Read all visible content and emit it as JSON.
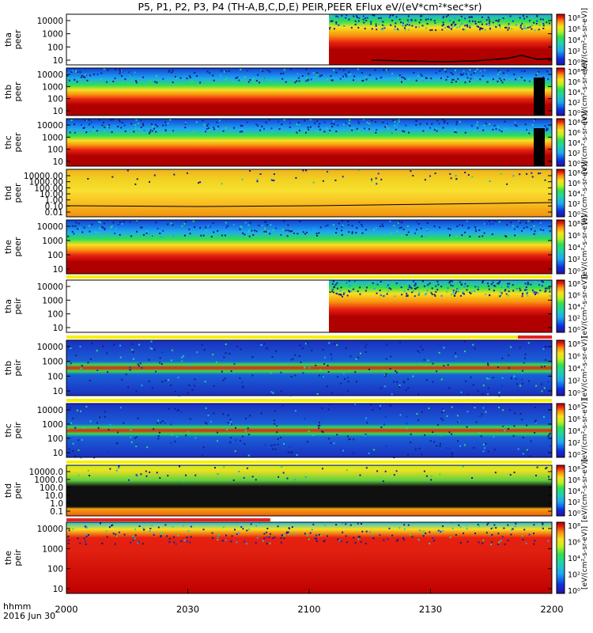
{
  "title": "P5, P1, P2, P3, P4 (TH-A,B,C,D,E) PEIR,PEER EFlux eV/(eV*cm²*sec*sr)",
  "colorbar_label": "[eV/(cm²-s-sr-eV)]",
  "colorbar_ticks": [
    "10⁰",
    "10²",
    "10⁴",
    "10⁶",
    "10⁸"
  ],
  "colors": {
    "cmap": [
      "#2a10a0",
      "#0a30e0",
      "#1fa8f0",
      "#20d0b0",
      "#30e050",
      "#c0f020",
      "#f8e020",
      "#f89010",
      "#e82010",
      "#b00000"
    ]
  },
  "footer": {
    "hhmm": "hhmm",
    "date": "2016 Jun 30"
  },
  "x_ticks": [
    "2000",
    "2030",
    "2100",
    "2130",
    "2200"
  ],
  "chart_data": {
    "type": "heatmap",
    "x_range": [
      "20:00",
      "22:00"
    ],
    "panels": [
      {
        "probe": "tha",
        "inst": "peer",
        "yticks": [
          "10000",
          "1000",
          "100",
          "10"
        ]
      },
      {
        "probe": "thb",
        "inst": "peer",
        "yticks": [
          "10000",
          "1000",
          "100",
          "10"
        ]
      },
      {
        "probe": "thc",
        "inst": "peer",
        "yticks": [
          "10000",
          "1000",
          "100",
          "10"
        ]
      },
      {
        "probe": "thd",
        "inst": "peer",
        "yticks": [
          "10000.00",
          "1000.00",
          "100.00",
          "10.00",
          "1.00",
          "0.10",
          "0.01"
        ]
      },
      {
        "probe": "the",
        "inst": "peer",
        "yticks": [
          "10000",
          "1000",
          "100",
          "10"
        ]
      },
      {
        "probe": "tha",
        "inst": "peir",
        "yticks": [
          "10000",
          "1000",
          "100",
          "10"
        ]
      },
      {
        "probe": "thb",
        "inst": "peir",
        "yticks": [
          "10000",
          "1000",
          "100",
          "10"
        ]
      },
      {
        "probe": "thc",
        "inst": "peir",
        "yticks": [
          "10000",
          "1000",
          "100",
          "10"
        ]
      },
      {
        "probe": "thd",
        "inst": "peir",
        "yticks": [
          "10000.0",
          "1000.0",
          "100.0",
          "10.0",
          "1.0",
          "0.1"
        ]
      },
      {
        "probe": "the",
        "inst": "peir",
        "yticks": [
          "10000",
          "1000",
          "100",
          "10"
        ]
      }
    ]
  }
}
